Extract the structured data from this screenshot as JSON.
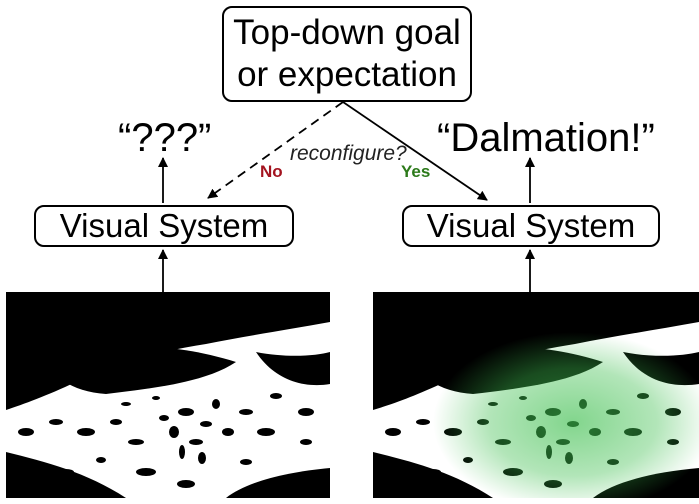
{
  "goal": {
    "line1": "Top-down goal",
    "line2": "or expectation"
  },
  "left": {
    "system_label": "Visual System",
    "output": "“???”",
    "branch": "No"
  },
  "right": {
    "system_label": "Visual System",
    "output": "“Dalmation!”",
    "branch": "Yes"
  },
  "question": "reconfigure?",
  "colors": {
    "no": "#a3131f",
    "yes": "#2c7a1a",
    "highlight": "#3fbf4f"
  }
}
